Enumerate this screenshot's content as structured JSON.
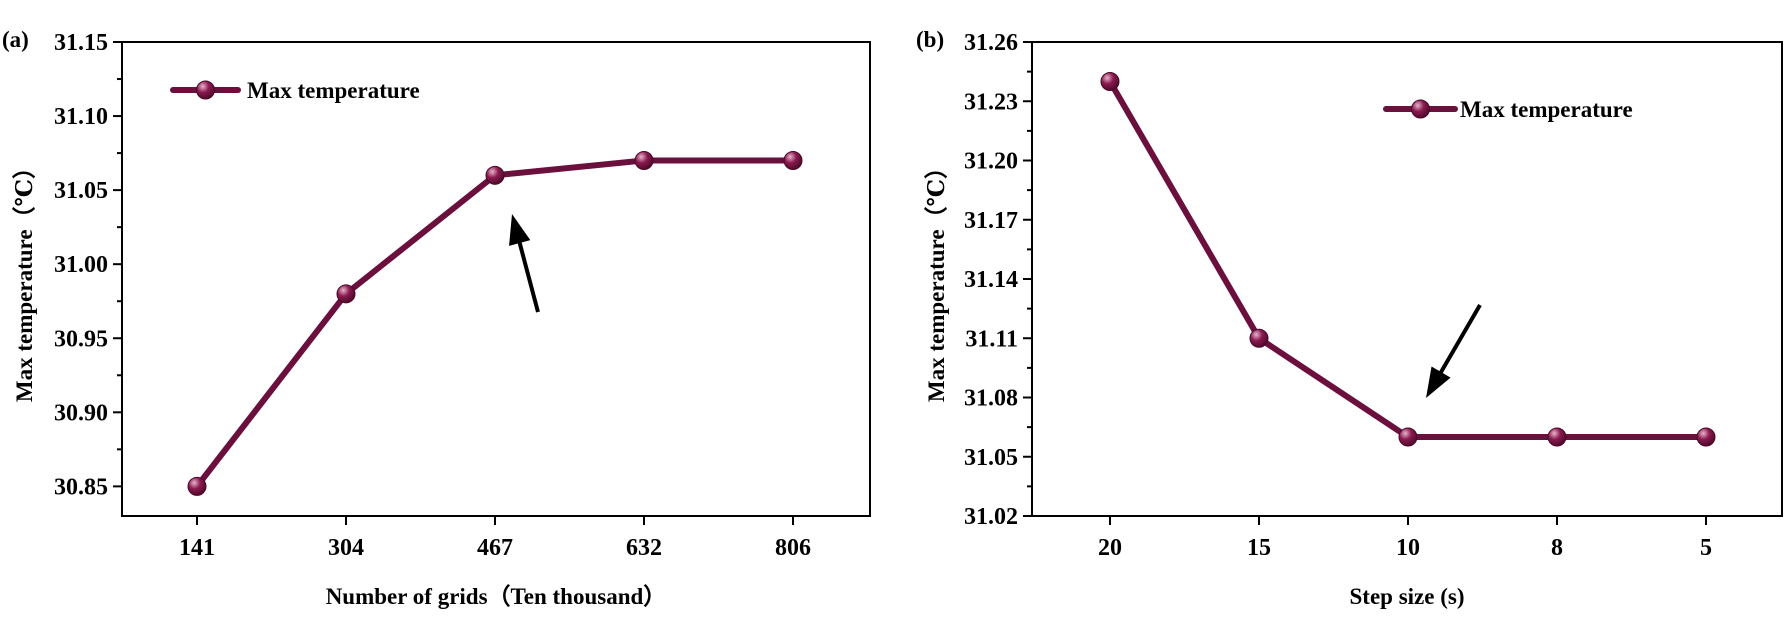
{
  "colors": {
    "series": "#6b0f3c",
    "series_highlight": "#d79ab8",
    "axis": "#000000",
    "arrow": "#000000"
  },
  "chart_data": [
    {
      "type": "line",
      "panel_label": "(a)",
      "xlabel": "Number of grids（Ten thousand）",
      "ylabel": "Max temperature（℃）",
      "categories": [
        "141",
        "304",
        "467",
        "632",
        "806"
      ],
      "ylim": [
        30.83,
        31.15
      ],
      "yticks": [
        "30.85",
        "30.90",
        "30.95",
        "31.00",
        "31.05",
        "31.10",
        "31.15"
      ],
      "series": [
        {
          "name": "Max temperature",
          "values": [
            30.85,
            30.98,
            31.06,
            31.07,
            31.07
          ]
        }
      ],
      "legend": "top-left",
      "grid": false,
      "annotation": {
        "type": "arrow",
        "points_to": "467"
      }
    },
    {
      "type": "line",
      "panel_label": "(b)",
      "xlabel": "Step size (s)",
      "ylabel": "Max temperature（℃）",
      "categories": [
        "20",
        "15",
        "10",
        "8",
        "5"
      ],
      "ylim": [
        31.02,
        31.26
      ],
      "yticks": [
        "31.02",
        "31.05",
        "31.08",
        "31.11",
        "31.14",
        "31.17",
        "31.20",
        "31.23",
        "31.26"
      ],
      "series": [
        {
          "name": "Max temperature",
          "values": [
            31.24,
            31.11,
            31.06,
            31.06,
            31.06
          ]
        }
      ],
      "legend": "top-right",
      "grid": false,
      "annotation": {
        "type": "arrow",
        "points_to": "10"
      }
    }
  ]
}
